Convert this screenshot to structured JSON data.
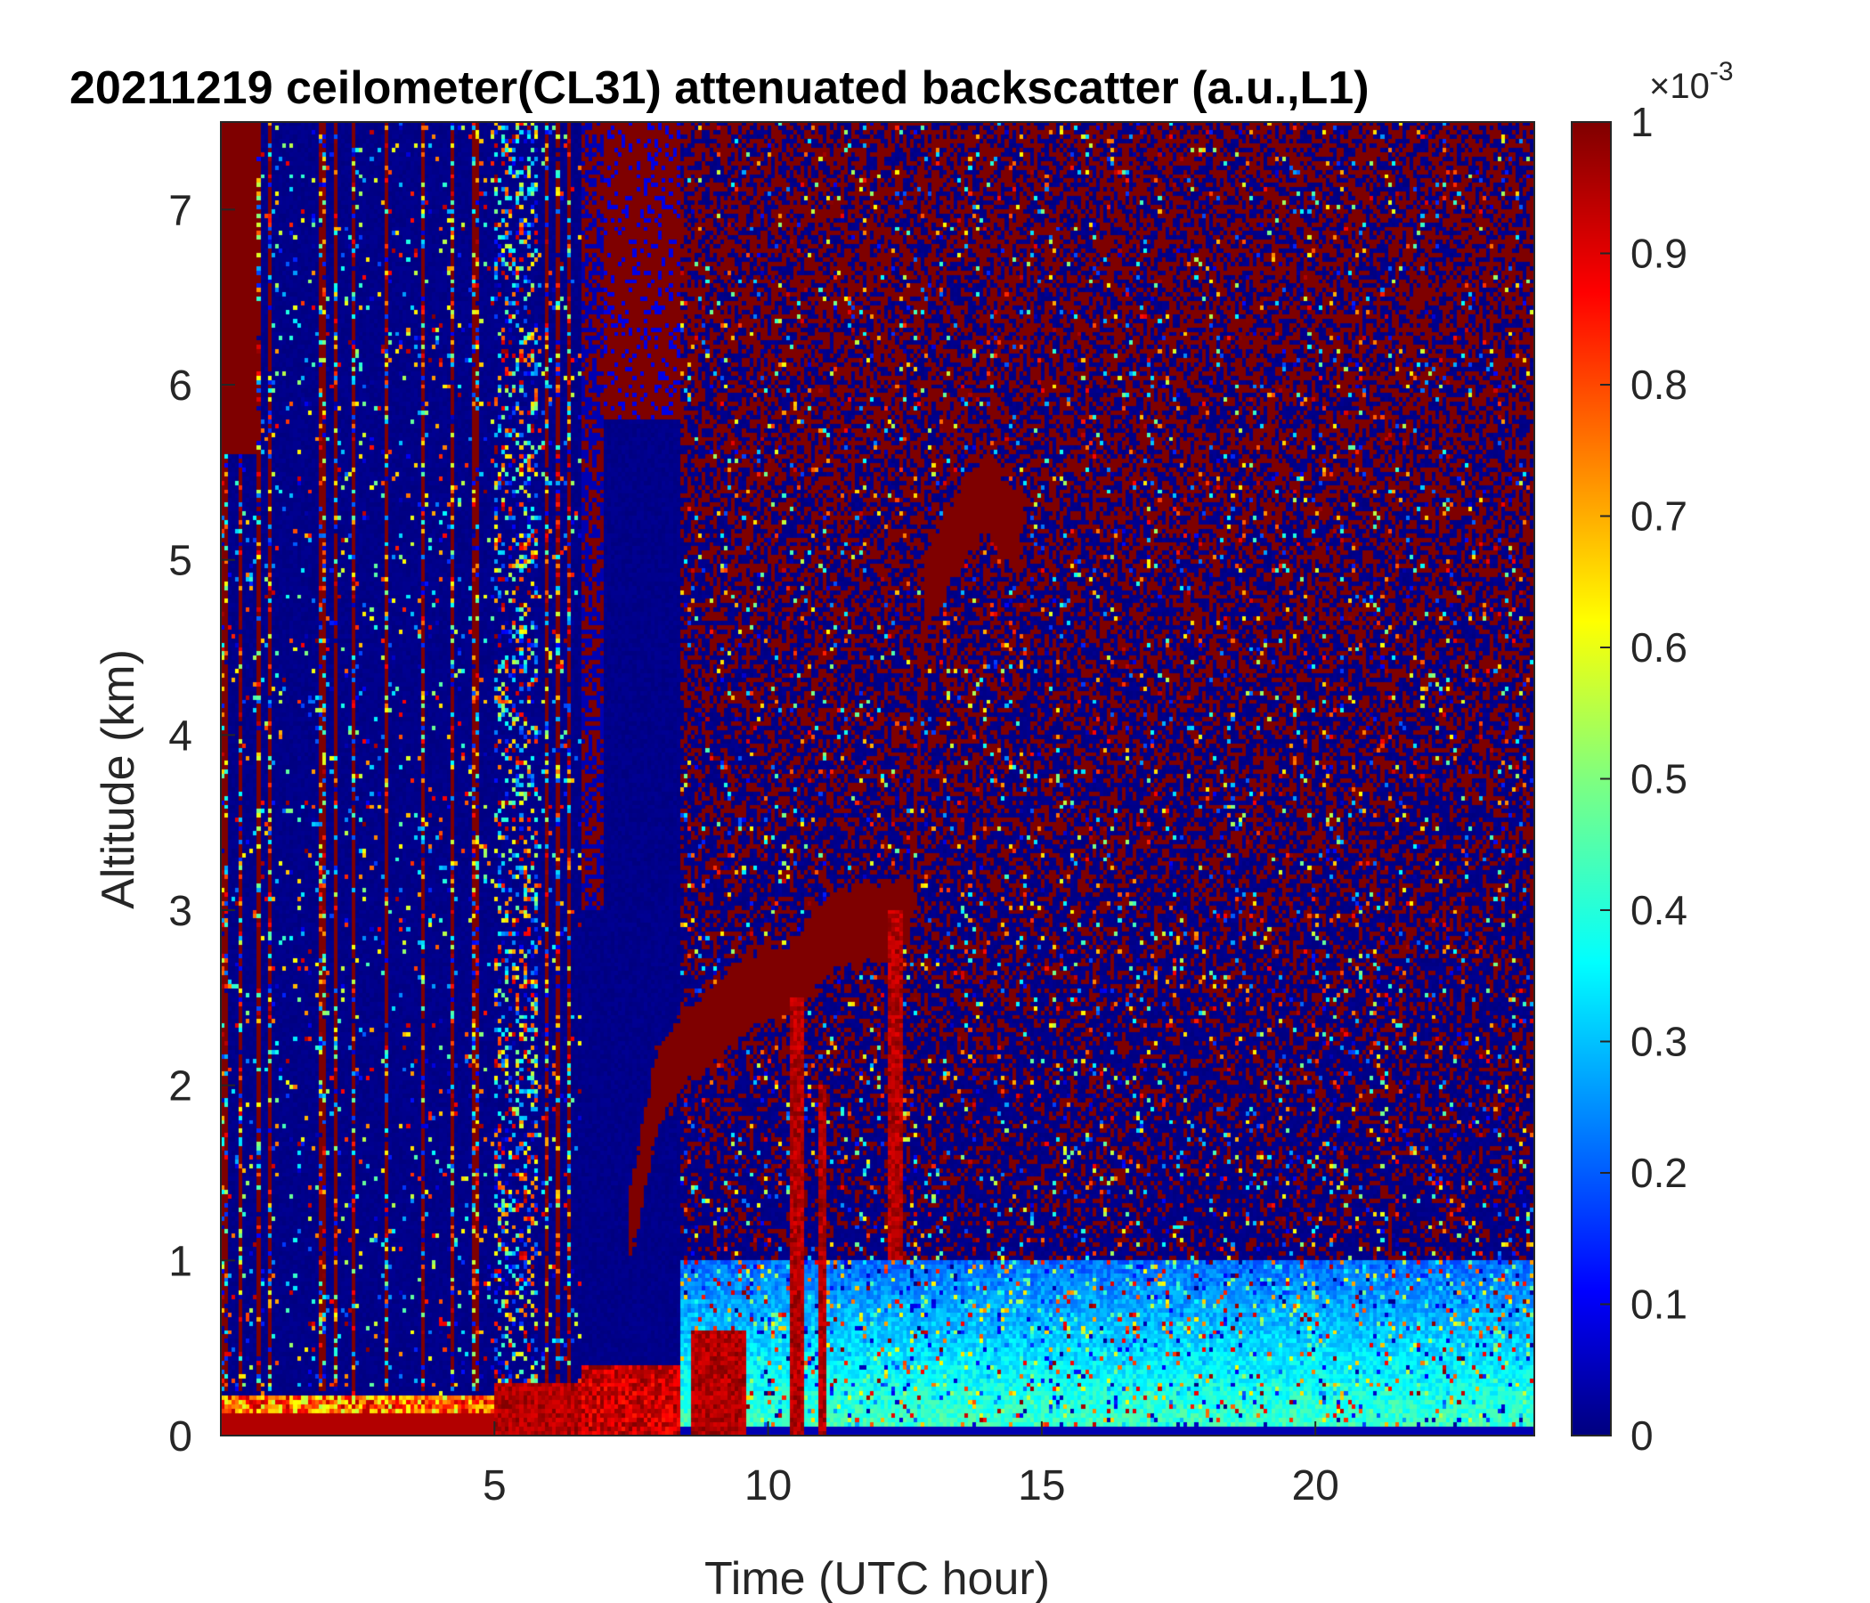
{
  "chart_data": {
    "type": "heatmap",
    "title": "20211219 ceilometer(CL31) attenuated backscatter (a.u.,L1)",
    "xlabel": "Time (UTC hour)",
    "ylabel": "Altitude (km)",
    "xlim": [
      0,
      24
    ],
    "ylim": [
      0,
      7.5
    ],
    "x_ticks": [
      5,
      10,
      15,
      20
    ],
    "x_tick_labels": [
      "5",
      "10",
      "15",
      "20"
    ],
    "y_ticks": [
      0,
      1,
      2,
      3,
      4,
      5,
      6,
      7
    ],
    "y_tick_labels": [
      "0",
      "1",
      "2",
      "3",
      "4",
      "5",
      "6",
      "7"
    ],
    "colorbar": {
      "colormap": "jet",
      "range": [
        0,
        0.001
      ],
      "ticks": [
        0,
        0.1,
        0.2,
        0.3,
        0.4,
        0.5,
        0.6,
        0.7,
        0.8,
        0.9,
        1
      ],
      "tick_labels": [
        "0",
        "0.1",
        "0.2",
        "0.3",
        "0.4",
        "0.5",
        "0.6",
        "0.7",
        "0.8",
        "0.9",
        "1"
      ],
      "scale_label_base": "×10",
      "scale_label_exp": "-3"
    },
    "grid": false,
    "features": {
      "surface_layer_km": [
        0,
        0.22
      ],
      "dense_columns_hours": [
        [
          0.0,
          0.7
        ],
        [
          0.8,
          0.9
        ],
        [
          1.0,
          1.1
        ],
        [
          1.3,
          1.4
        ],
        [
          1.6,
          1.7
        ],
        [
          6.6,
          8.4
        ]
      ],
      "cloud_ramp_points": [
        {
          "x": 7.5,
          "y": 1.2
        },
        {
          "x": 8.0,
          "y": 2.0
        },
        {
          "x": 8.5,
          "y": 2.2
        },
        {
          "x": 9.5,
          "y": 2.5
        },
        {
          "x": 10.5,
          "y": 2.6
        },
        {
          "x": 11.2,
          "y": 2.9
        },
        {
          "x": 12.0,
          "y": 2.9
        },
        {
          "x": 12.6,
          "y": 3.0
        },
        {
          "x": 12.9,
          "y": 4.8
        },
        {
          "x": 13.2,
          "y": 5.0
        },
        {
          "x": 14.0,
          "y": 5.4
        },
        {
          "x": 14.6,
          "y": 5.1
        }
      ]
    },
    "colors": {
      "low": "#00007f",
      "high": "#7f0000",
      "boundary_layer": "#2a9df4"
    }
  }
}
